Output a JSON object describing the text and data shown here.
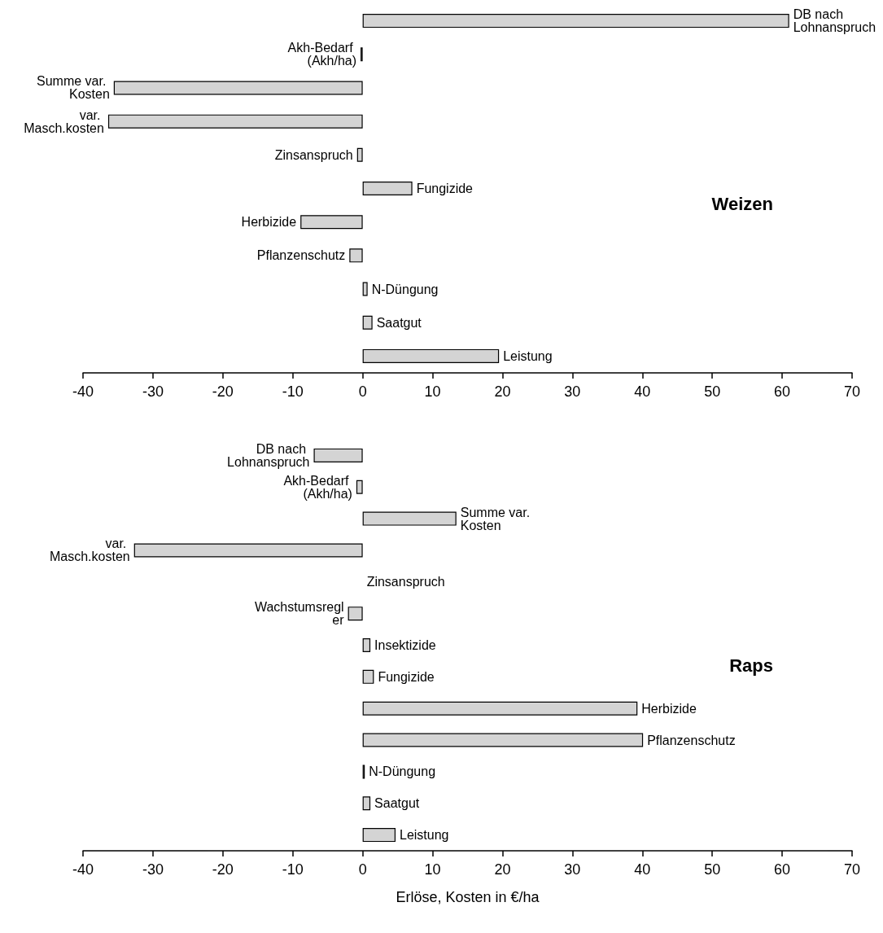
{
  "chart_data": [
    {
      "type": "bar",
      "orientation": "horizontal",
      "title": "Weizen",
      "categories": [
        "DB nach Lohnanspruch",
        "Akh-Bedarf (Akh/ha)",
        "Summe var. Kosten",
        "var. Masch.kosten",
        "Zinsanspruch",
        "Fungizide",
        "Herbizide",
        "Pflanzenschutz",
        "N-Düngung",
        "Saatgut",
        "Leistung"
      ],
      "values": [
        61.0,
        -0.3,
        -35.6,
        -36.4,
        -0.8,
        7.1,
        -8.9,
        -1.9,
        0.7,
        1.4,
        19.5
      ],
      "color": "#d4d4d4",
      "xlim": [
        -40,
        70
      ],
      "xticks": [
        -40,
        -30,
        -20,
        -10,
        0,
        10,
        20,
        30,
        40,
        50,
        60,
        70
      ],
      "grid": false
    },
    {
      "type": "bar",
      "orientation": "horizontal",
      "title": "Raps",
      "xlabel": "Erlöse, Kosten in €/ha",
      "categories": [
        "DB nach Lohnanspruch",
        "Akh-Bedarf (Akh/ha)",
        "Summe var. Kosten",
        "var. Masch.kosten",
        "Zinsanspruch",
        "Wachstumsregler",
        "Insektizide",
        "Fungizide",
        "Herbizide",
        "Pflanzenschutz",
        "N-Düngung",
        "Saatgut",
        "Leistung"
      ],
      "values": [
        -7.0,
        -0.9,
        13.4,
        -32.7,
        0,
        -2.1,
        1.1,
        1.6,
        39.3,
        40.1,
        0.3,
        1.1,
        4.7
      ],
      "color": "#d4d4d4",
      "xlim": [
        -40,
        70
      ],
      "xticks": [
        -40,
        -30,
        -20,
        -10,
        0,
        10,
        20,
        30,
        40,
        50,
        60,
        70
      ],
      "grid": false
    }
  ]
}
